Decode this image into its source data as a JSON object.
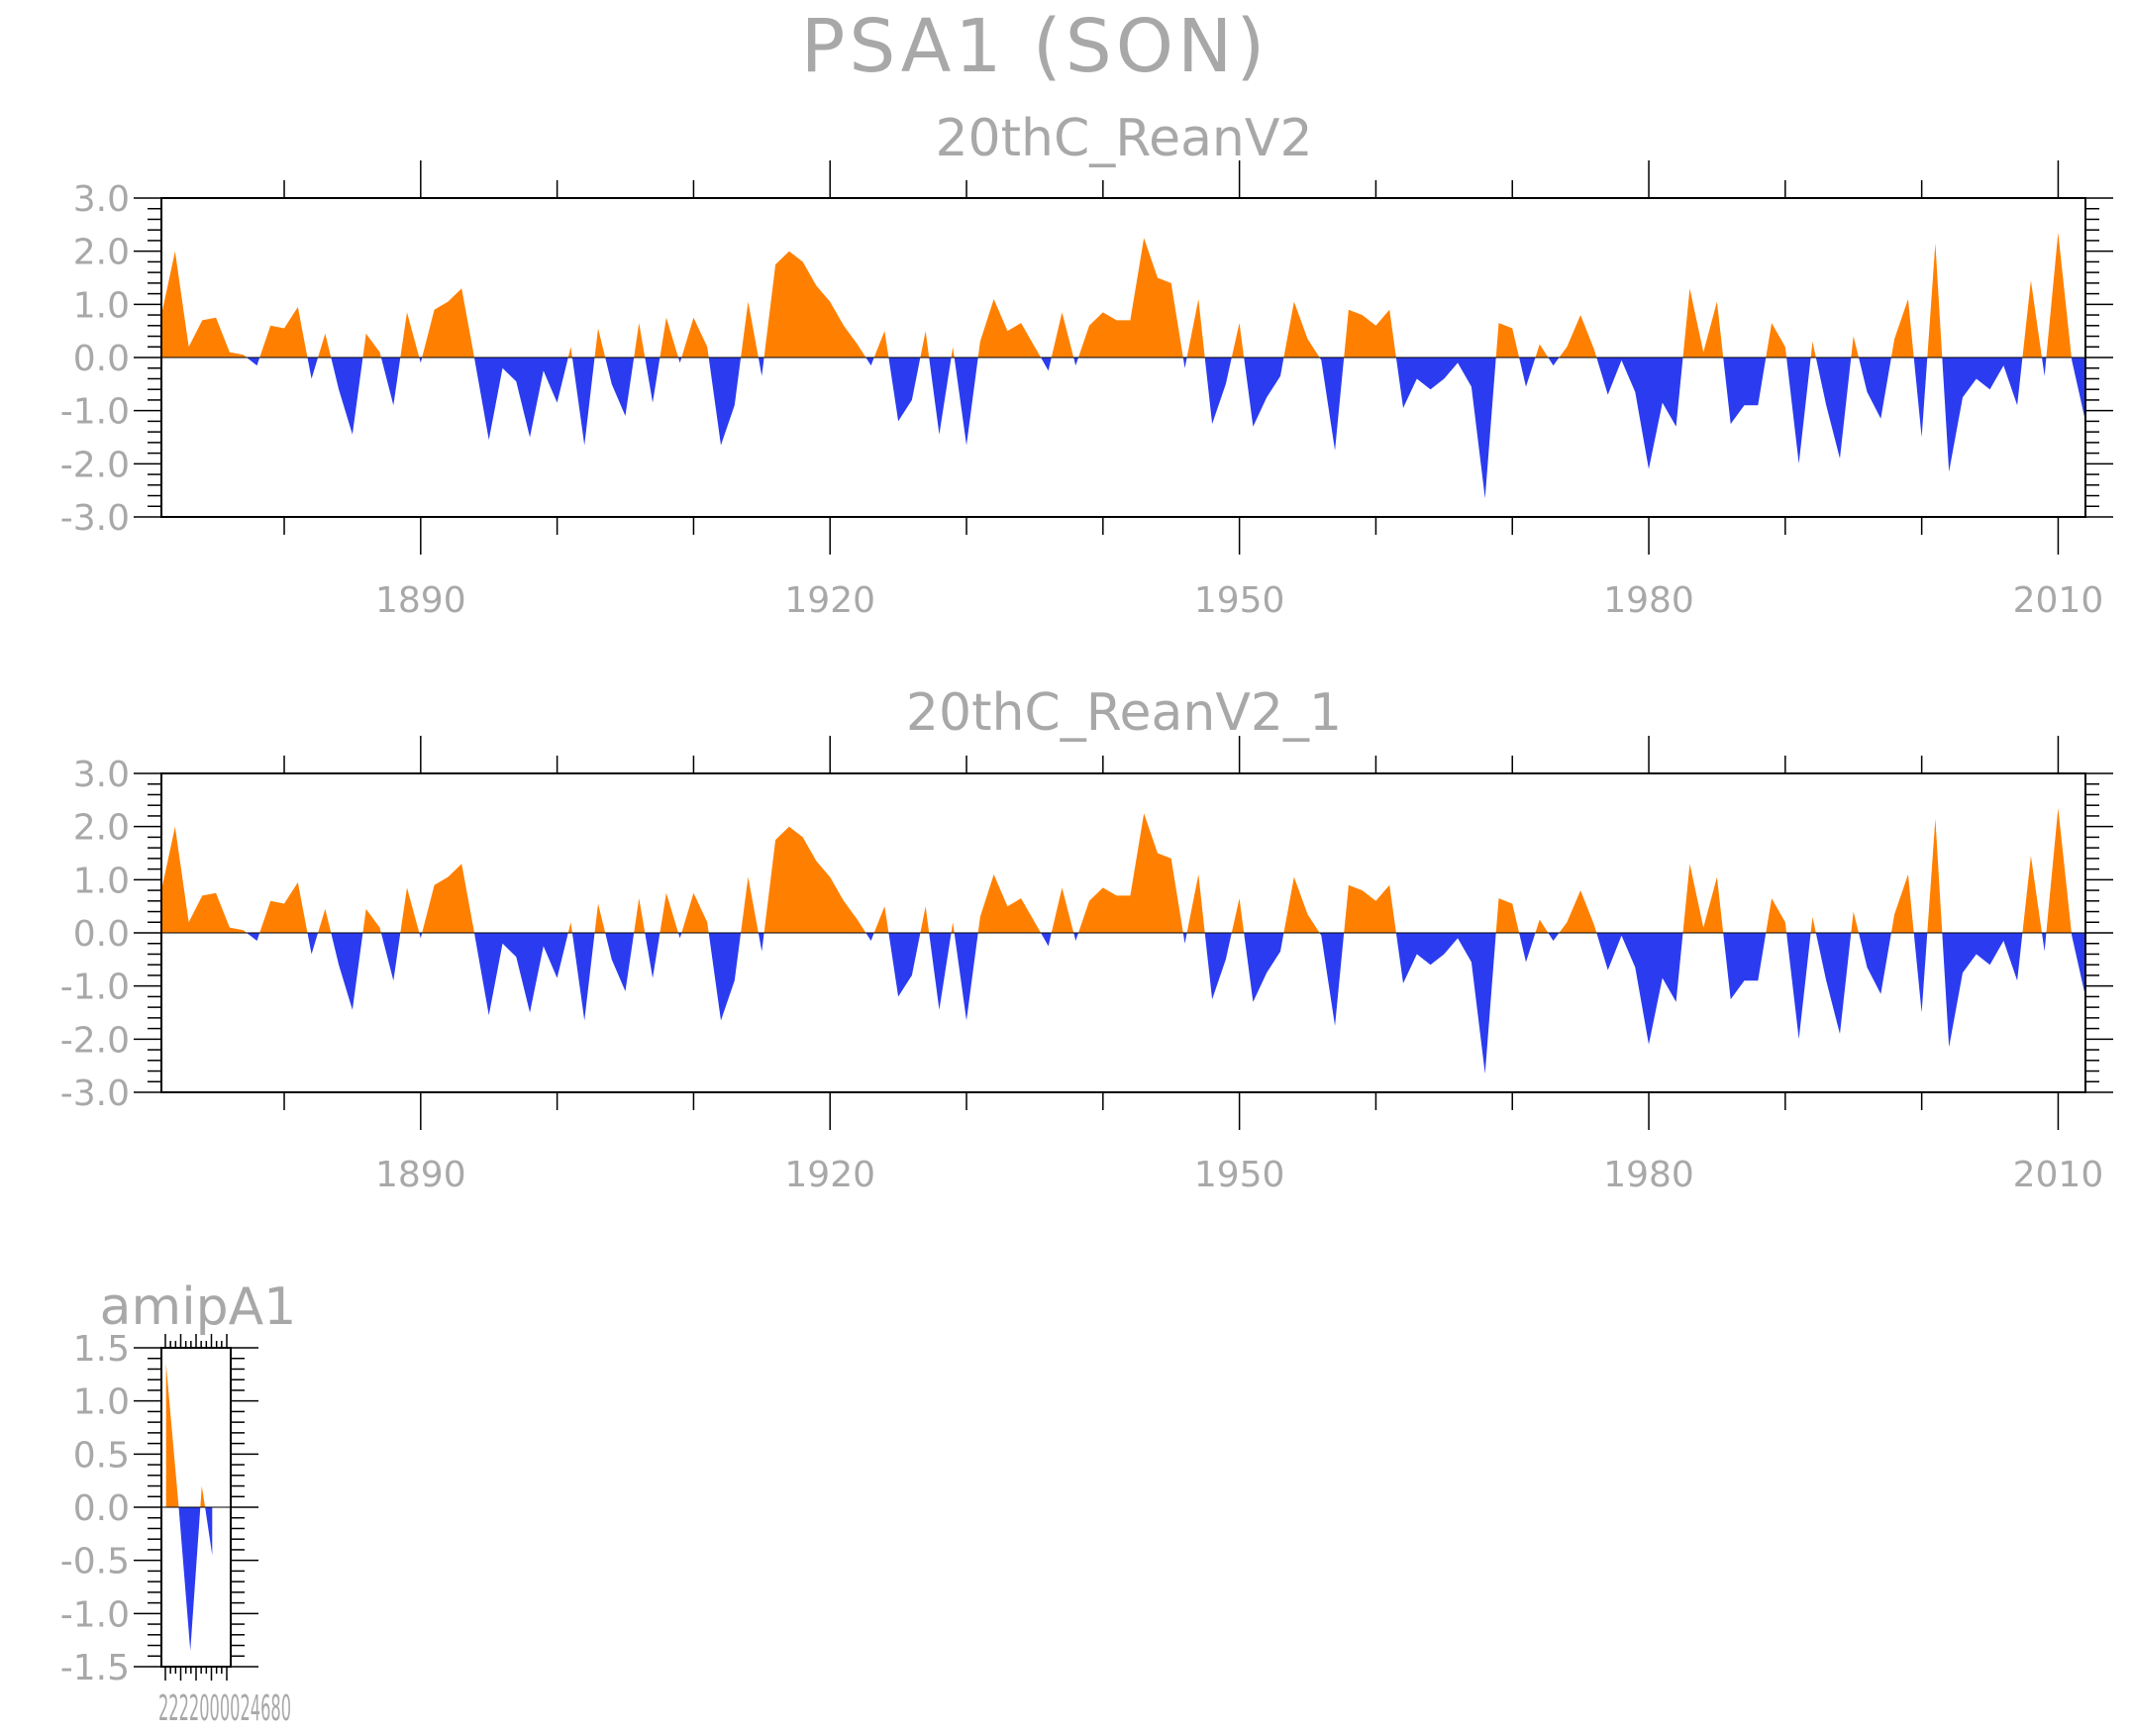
{
  "chart_data": {
    "title": "PSA1 (SON)",
    "type": "area",
    "positive_color": "#ff8000",
    "negative_color": "#2b3cf0",
    "panels": [
      {
        "name": "20thC_ReanV2",
        "type": "area",
        "xlim": [
          1871,
          2012
        ],
        "ylim": [
          -3.0,
          3.0
        ],
        "y_ticks": [
          -3.0,
          -2.0,
          -1.0,
          0.0,
          1.0,
          2.0,
          3.0
        ],
        "y_tick_labels": [
          "-3.0",
          "-2.0",
          "-1.0",
          "0.0",
          "1.0",
          "2.0",
          "3.0"
        ],
        "x_ticks": [
          1890,
          1920,
          1950,
          1980,
          2010
        ],
        "x_tick_labels": [
          "1890",
          "1920",
          "1950",
          "1980",
          "2010"
        ],
        "x_start": 1871,
        "values": [
          0.8,
          2.0,
          0.2,
          0.7,
          0.75,
          0.1,
          0.05,
          -0.15,
          0.6,
          0.55,
          0.95,
          -0.4,
          0.45,
          -0.6,
          -1.45,
          0.45,
          0.1,
          -0.9,
          0.85,
          -0.1,
          0.9,
          1.05,
          1.3,
          -0.1,
          -1.55,
          -0.2,
          -0.45,
          -1.5,
          -0.25,
          -0.85,
          0.2,
          -1.65,
          0.55,
          -0.5,
          -1.1,
          0.65,
          -0.85,
          0.75,
          -0.1,
          0.75,
          0.2,
          -1.65,
          -0.9,
          1.05,
          -0.35,
          1.75,
          2.0,
          1.8,
          1.35,
          1.05,
          0.6,
          0.25,
          -0.15,
          0.5,
          -1.2,
          -0.8,
          0.5,
          -1.45,
          0.2,
          -1.65,
          0.3,
          1.1,
          0.5,
          0.65,
          0.2,
          -0.25,
          0.85,
          -0.15,
          0.6,
          0.85,
          0.7,
          0.7,
          2.25,
          1.5,
          1.4,
          -0.2,
          1.1,
          -1.25,
          -0.5,
          0.65,
          -1.3,
          -0.75,
          -0.35,
          1.05,
          0.35,
          -0.05,
          -1.75,
          0.9,
          0.8,
          0.6,
          0.9,
          -0.95,
          -0.4,
          -0.6,
          -0.4,
          -0.1,
          -0.55,
          -2.65,
          0.65,
          0.55,
          -0.55,
          0.25,
          -0.15,
          0.2,
          0.8,
          0.15,
          -0.7,
          -0.05,
          -0.65,
          -2.1,
          -0.85,
          -1.3,
          1.3,
          0.1,
          1.05,
          -1.25,
          -0.9,
          -0.9,
          0.65,
          0.2,
          -2.0,
          0.3,
          -0.9,
          -1.9,
          0.4,
          -0.65,
          -1.15,
          0.35,
          1.1,
          -1.5,
          2.15,
          -2.15,
          -0.75,
          -0.4,
          -0.6,
          -0.15,
          -0.9,
          1.45,
          -0.35,
          2.35,
          -0.05,
          -1.2
        ]
      },
      {
        "name": "20thC_ReanV2_1",
        "type": "area",
        "xlim": [
          1871,
          2012
        ],
        "ylim": [
          -3.0,
          3.0
        ],
        "y_ticks": [
          -3.0,
          -2.0,
          -1.0,
          0.0,
          1.0,
          2.0,
          3.0
        ],
        "y_tick_labels": [
          "-3.0",
          "-2.0",
          "-1.0",
          "0.0",
          "1.0",
          "2.0",
          "3.0"
        ],
        "x_ticks": [
          1890,
          1920,
          1950,
          1980,
          2010
        ],
        "x_tick_labels": [
          "1890",
          "1920",
          "1950",
          "1980",
          "2010"
        ],
        "x_start": 1871,
        "values": [
          0.8,
          2.0,
          0.2,
          0.7,
          0.75,
          0.1,
          0.05,
          -0.15,
          0.6,
          0.55,
          0.95,
          -0.4,
          0.45,
          -0.6,
          -1.45,
          0.45,
          0.1,
          -0.9,
          0.85,
          -0.1,
          0.9,
          1.05,
          1.3,
          -0.1,
          -1.55,
          -0.2,
          -0.45,
          -1.5,
          -0.25,
          -0.85,
          0.2,
          -1.65,
          0.55,
          -0.5,
          -1.1,
          0.65,
          -0.85,
          0.75,
          -0.1,
          0.75,
          0.2,
          -1.65,
          -0.9,
          1.05,
          -0.35,
          1.75,
          2.0,
          1.8,
          1.35,
          1.05,
          0.6,
          0.25,
          -0.15,
          0.5,
          -1.2,
          -0.8,
          0.5,
          -1.45,
          0.2,
          -1.65,
          0.3,
          1.1,
          0.5,
          0.65,
          0.2,
          -0.25,
          0.85,
          -0.15,
          0.6,
          0.85,
          0.7,
          0.7,
          2.25,
          1.5,
          1.4,
          -0.2,
          1.1,
          -1.25,
          -0.5,
          0.65,
          -1.3,
          -0.75,
          -0.35,
          1.05,
          0.35,
          -0.05,
          -1.75,
          0.9,
          0.8,
          0.6,
          0.9,
          -0.95,
          -0.4,
          -0.6,
          -0.4,
          -0.1,
          -0.55,
          -2.65,
          0.65,
          0.55,
          -0.55,
          0.25,
          -0.15,
          0.2,
          0.8,
          0.15,
          -0.7,
          -0.05,
          -0.65,
          -2.1,
          -0.85,
          -1.3,
          1.3,
          0.1,
          1.05,
          -1.25,
          -0.9,
          -0.9,
          0.65,
          0.2,
          -2.0,
          0.3,
          -0.9,
          -1.9,
          0.4,
          -0.65,
          -1.15,
          0.35,
          1.1,
          -1.5,
          2.15,
          -2.15,
          -0.75,
          -0.4,
          -0.6,
          -0.15,
          -0.9,
          1.45,
          -0.35,
          2.35,
          -0.05,
          -1.2
        ]
      },
      {
        "name": "amipA1",
        "type": "area",
        "xlim": [
          0,
          6
        ],
        "ylim": [
          -1.5,
          1.5
        ],
        "y_ticks": [
          -1.5,
          -1.0,
          -0.5,
          0.0,
          0.5,
          1.0,
          1.5
        ],
        "y_tick_labels": [
          "-1.5",
          "-1.0",
          "-0.5",
          "0.0",
          "0.5",
          "1.0",
          "1.5"
        ],
        "x_tick_labels_overlapping": "2222000024680",
        "x": [
          0.4,
          1.5,
          2.5,
          3.5,
          4.4
        ],
        "values": [
          1.35,
          0.0,
          -1.35,
          0.2,
          -0.45
        ]
      }
    ]
  }
}
